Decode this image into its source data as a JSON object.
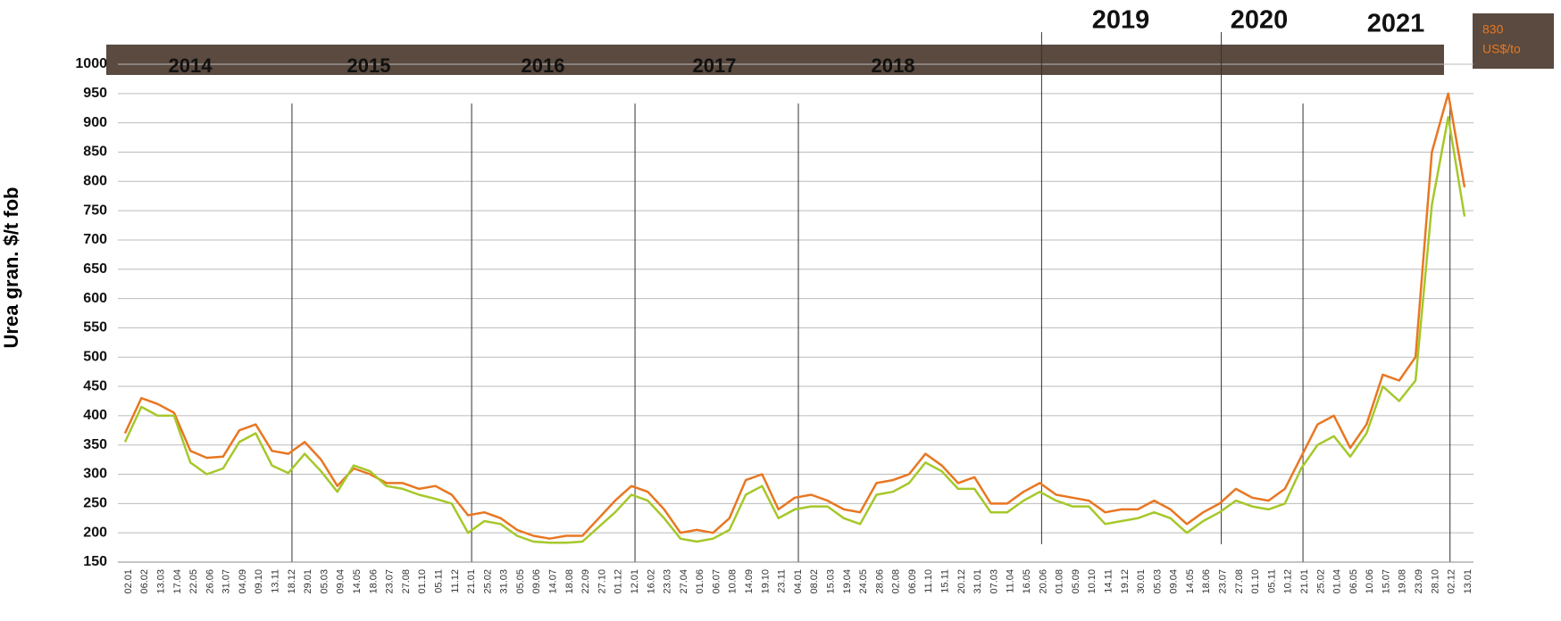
{
  "chart_data": {
    "type": "line",
    "ylabel": "Urea gran. $/t fob",
    "period_labels": [
      "2014",
      "2015",
      "2016",
      "2017",
      "2018",
      "2019",
      "2020",
      "2021"
    ],
    "annotations": [
      "830",
      "US$/to"
    ],
    "categories": [
      "02.01",
      "06.02",
      "13.03",
      "17.04",
      "22.05",
      "26.06",
      "31.07",
      "04.09",
      "09.10",
      "13.11",
      "18.12",
      "29.01",
      "05.03",
      "09.04",
      "14.05",
      "18.06",
      "23.07",
      "27.08",
      "01.10",
      "05.11",
      "11.12",
      "21.01",
      "25.02",
      "31.03",
      "05.05",
      "09.06",
      "14.07",
      "18.08",
      "22.09",
      "27.10",
      "01.12",
      "12.01",
      "16.02",
      "23.03",
      "27.04",
      "01.06",
      "06.07",
      "10.08",
      "14.09",
      "19.10",
      "23.11",
      "04.01",
      "08.02",
      "15.03",
      "19.04",
      "24.05",
      "28.06",
      "02.08",
      "06.09",
      "11.10",
      "15.11",
      "20.12",
      "31.01",
      "07.03",
      "11.04",
      "16.05",
      "20.06",
      "01.08",
      "05.09",
      "10.10",
      "14.11",
      "19.12",
      "30.01",
      "05.03",
      "09.04",
      "14.05",
      "18.06",
      "23.07",
      "27.08",
      "01.10",
      "05.11",
      "10.12",
      "21.01",
      "25.02",
      "01.04",
      "06.05",
      "10.06",
      "15.07",
      "19.08",
      "23.09",
      "28.10",
      "02.12",
      "13.01"
    ],
    "series": [
      {
        "color": "#e87722",
        "values": [
          370,
          430,
          420,
          405,
          340,
          328,
          330,
          375,
          385,
          340,
          335,
          355,
          325,
          280,
          310,
          300,
          285,
          285,
          275,
          280,
          265,
          230,
          235,
          225,
          205,
          195,
          190,
          195,
          195,
          225,
          255,
          280,
          270,
          240,
          200,
          205,
          200,
          225,
          290,
          300,
          240,
          260,
          265,
          255,
          240,
          235,
          285,
          290,
          300,
          335,
          315,
          285,
          295,
          250,
          250,
          270,
          285,
          265,
          260,
          255,
          235,
          240,
          240,
          255,
          240,
          215,
          235,
          250,
          275,
          260,
          255,
          275,
          330,
          385,
          400,
          345,
          385,
          470,
          460,
          500,
          850,
          950,
          790
        ]
      },
      {
        "color": "#a5c82a",
        "values": [
          355,
          415,
          400,
          400,
          320,
          300,
          310,
          355,
          370,
          315,
          302,
          335,
          305,
          270,
          315,
          305,
          280,
          275,
          265,
          258,
          250,
          200,
          220,
          215,
          195,
          185,
          183,
          183,
          185,
          210,
          235,
          265,
          255,
          225,
          190,
          185,
          190,
          205,
          265,
          280,
          225,
          240,
          245,
          245,
          225,
          215,
          265,
          270,
          285,
          320,
          305,
          275,
          275,
          235,
          235,
          255,
          270,
          255,
          245,
          245,
          215,
          220,
          225,
          235,
          225,
          200,
          220,
          235,
          255,
          245,
          240,
          250,
          310,
          350,
          365,
          330,
          370,
          450,
          425,
          460,
          760,
          910,
          740
        ]
      }
    ],
    "ylim": [
      150,
      1000
    ],
    "yticks": [
      150,
      200,
      250,
      300,
      350,
      400,
      450,
      500,
      550,
      600,
      650,
      700,
      750,
      800,
      850,
      900,
      950,
      1000
    ],
    "grid": true
  }
}
